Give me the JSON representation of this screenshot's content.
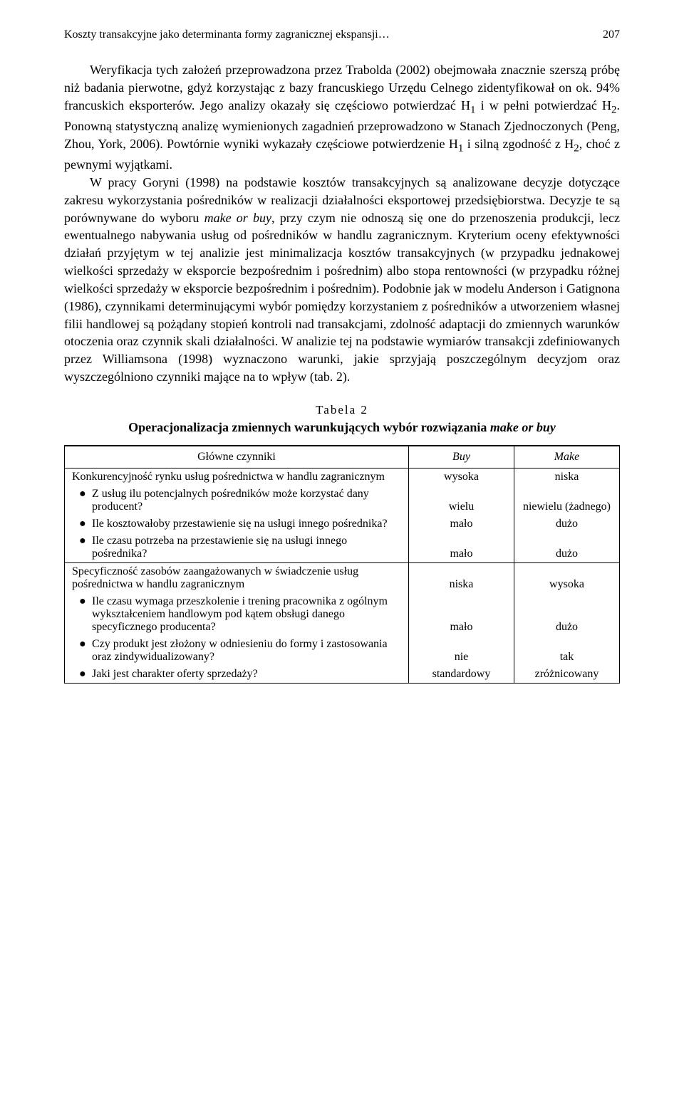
{
  "runningHead": {
    "title": "Koszty transakcyjne jako determinanta formy zagranicznej ekspansji…",
    "pageNumber": "207"
  },
  "paragraphs": {
    "p1_a": "Weryfikacja tych założeń przeprowadzona przez Trabolda (2002) obejmowała znacznie szerszą próbę niż badania pierwotne, gdyż korzystając z bazy francuskiego Urzędu Celnego zidentyfikował on ok. 94% francuskich eksporterów. Jego analizy okazały się częściowo potwierdzać H",
    "p1_sub1": "1",
    "p1_b": " i w pełni potwierdzać H",
    "p1_sub2": "2",
    "p1_c": ". Ponowną statystyczną analizę wymienionych zagadnień przeprowadzono w Stanach Zjednoczonych (Peng, Zhou, York, 2006). Powtórnie wyniki wykazały częściowe potwierdzenie H",
    "p1_sub3": "1",
    "p1_d": " i silną zgodność z H",
    "p1_sub4": "2",
    "p1_e": ", choć z pewnymi wyjątkami.",
    "p2_a": "W pracy Goryni (1998) na podstawie kosztów transakcyjnych są analizowane decyzje dotyczące zakresu wykorzystania pośredników w realizacji działalności eksportowej przedsiębiorstwa. Decyzje te są porównywane do wyboru ",
    "p2_it1": "make or buy",
    "p2_b": ", przy czym nie odnoszą się one do przenoszenia produkcji, lecz ewentualnego nabywania usług od pośredników w handlu zagranicznym. Kryterium oceny efektywności działań przyjętym w tej analizie jest minimalizacja kosztów transakcyjnych (w przypadku jednakowej wielkości sprzedaży w eksporcie bezpośrednim i pośrednim) albo stopa rentowności (w przypadku różnej wielkości sprzedaży w eksporcie bezpośrednim i pośrednim). Podobnie jak w modelu Anderson i Gatignona (1986), czynnikami determinującymi wybór pomiędzy korzystaniem z pośredników a utworzeniem własnej filii handlowej są pożądany stopień kontroli nad transakcjami, zdolność adaptacji do zmiennych warunków otoczenia oraz czynnik skali działalności. W analizie tej na podstawie wymiarów transakcji zdefiniowanych przez Williamsona (1998) wyznaczono warunki, jakie sprzyjają poszczególnym decyzjom oraz wyszczególniono czynniki mające na to wpływ (tab. 2)."
  },
  "table": {
    "label": "Tabela 2",
    "caption_a": "Operacjonalizacja zmiennych warunkujących wybór rozwiązania ",
    "caption_it": "make or buy",
    "headers": {
      "c1": "Główne czynniki",
      "c2": "Buy",
      "c3": "Make"
    },
    "rows": [
      {
        "type": "group",
        "text": "Konkurencyjność rynku usług pośrednictwa w handlu zagranicznym",
        "buy": "wysoka",
        "make": "niska"
      },
      {
        "type": "bullet",
        "text": "Z usług ilu potencjalnych pośredników może korzystać dany producent?",
        "buy": "wielu",
        "make": "niewielu (żadnego)"
      },
      {
        "type": "bullet",
        "text": "Ile kosztowałoby przestawienie się na usługi innego pośrednika?",
        "buy": "mało",
        "make": "dużo"
      },
      {
        "type": "bullet",
        "text": "Ile czasu potrzeba na przestawienie się na usługi innego pośrednika?",
        "buy": "mało",
        "make": "dużo"
      },
      {
        "type": "group",
        "text": "Specyficzność zasobów zaangażowanych w świadczenie usług pośrednictwa w handlu zagranicznym",
        "buy": "niska",
        "make": "wysoka"
      },
      {
        "type": "bullet",
        "text": "Ile czasu wymaga przeszkolenie i trening pracownika z ogólnym wykształceniem handlowym pod kątem obsługi danego specyficznego producenta?",
        "buy": "mało",
        "make": "dużo"
      },
      {
        "type": "bullet",
        "text": "Czy produkt jest złożony w odniesieniu do formy i zastosowania oraz zindywidualizowany?",
        "buy": "nie",
        "make": "tak"
      },
      {
        "type": "bullet",
        "text": "Jaki jest charakter oferty sprzedaży?",
        "buy": "standardowy",
        "make": "zróżnicowany"
      }
    ]
  }
}
